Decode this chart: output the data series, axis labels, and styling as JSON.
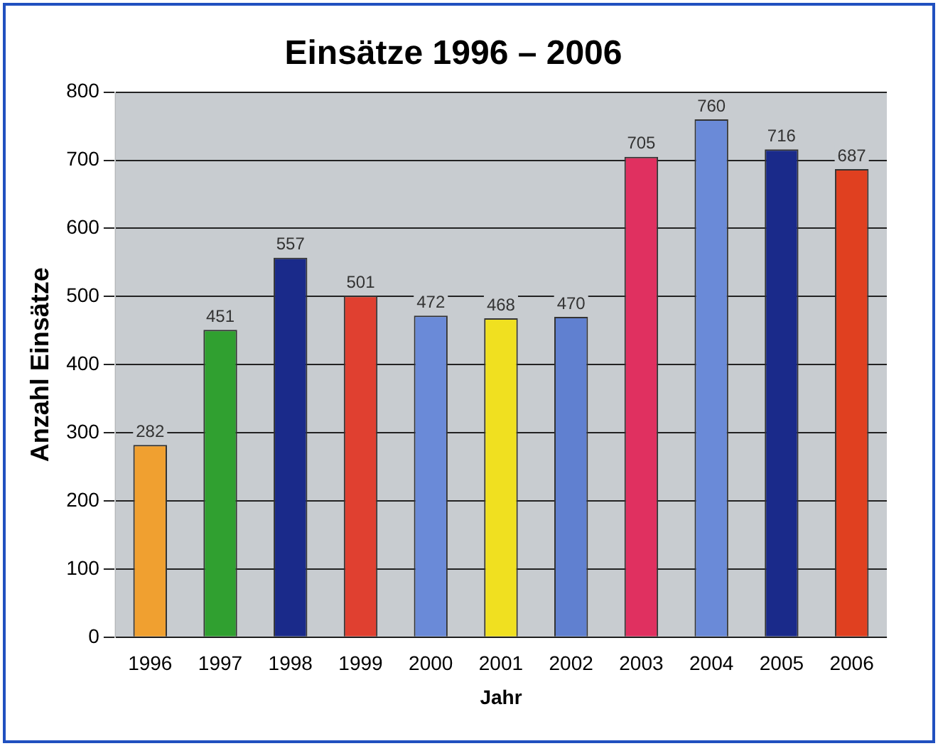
{
  "chart_data": {
    "type": "bar",
    "title": "Einsätze 1996 – 2006",
    "xlabel": "Jahr",
    "ylabel": "Anzahl Einsätze",
    "categories": [
      "1996",
      "1997",
      "1998",
      "1999",
      "2000",
      "2001",
      "2002",
      "2003",
      "2004",
      "2005",
      "2006"
    ],
    "values": [
      282,
      451,
      557,
      501,
      472,
      468,
      470,
      705,
      760,
      716,
      687
    ],
    "colors": [
      "#f0a030",
      "#30a030",
      "#1a2a8a",
      "#e04030",
      "#6a8ad8",
      "#f0e020",
      "#6080d0",
      "#e03060",
      "#6a8ad8",
      "#1a2a8a",
      "#e04020"
    ],
    "ylim": [
      0,
      800
    ],
    "yticks": [
      0,
      100,
      200,
      300,
      400,
      500,
      600,
      700,
      800
    ],
    "grid": "y",
    "data_labels": true,
    "legend": false
  }
}
